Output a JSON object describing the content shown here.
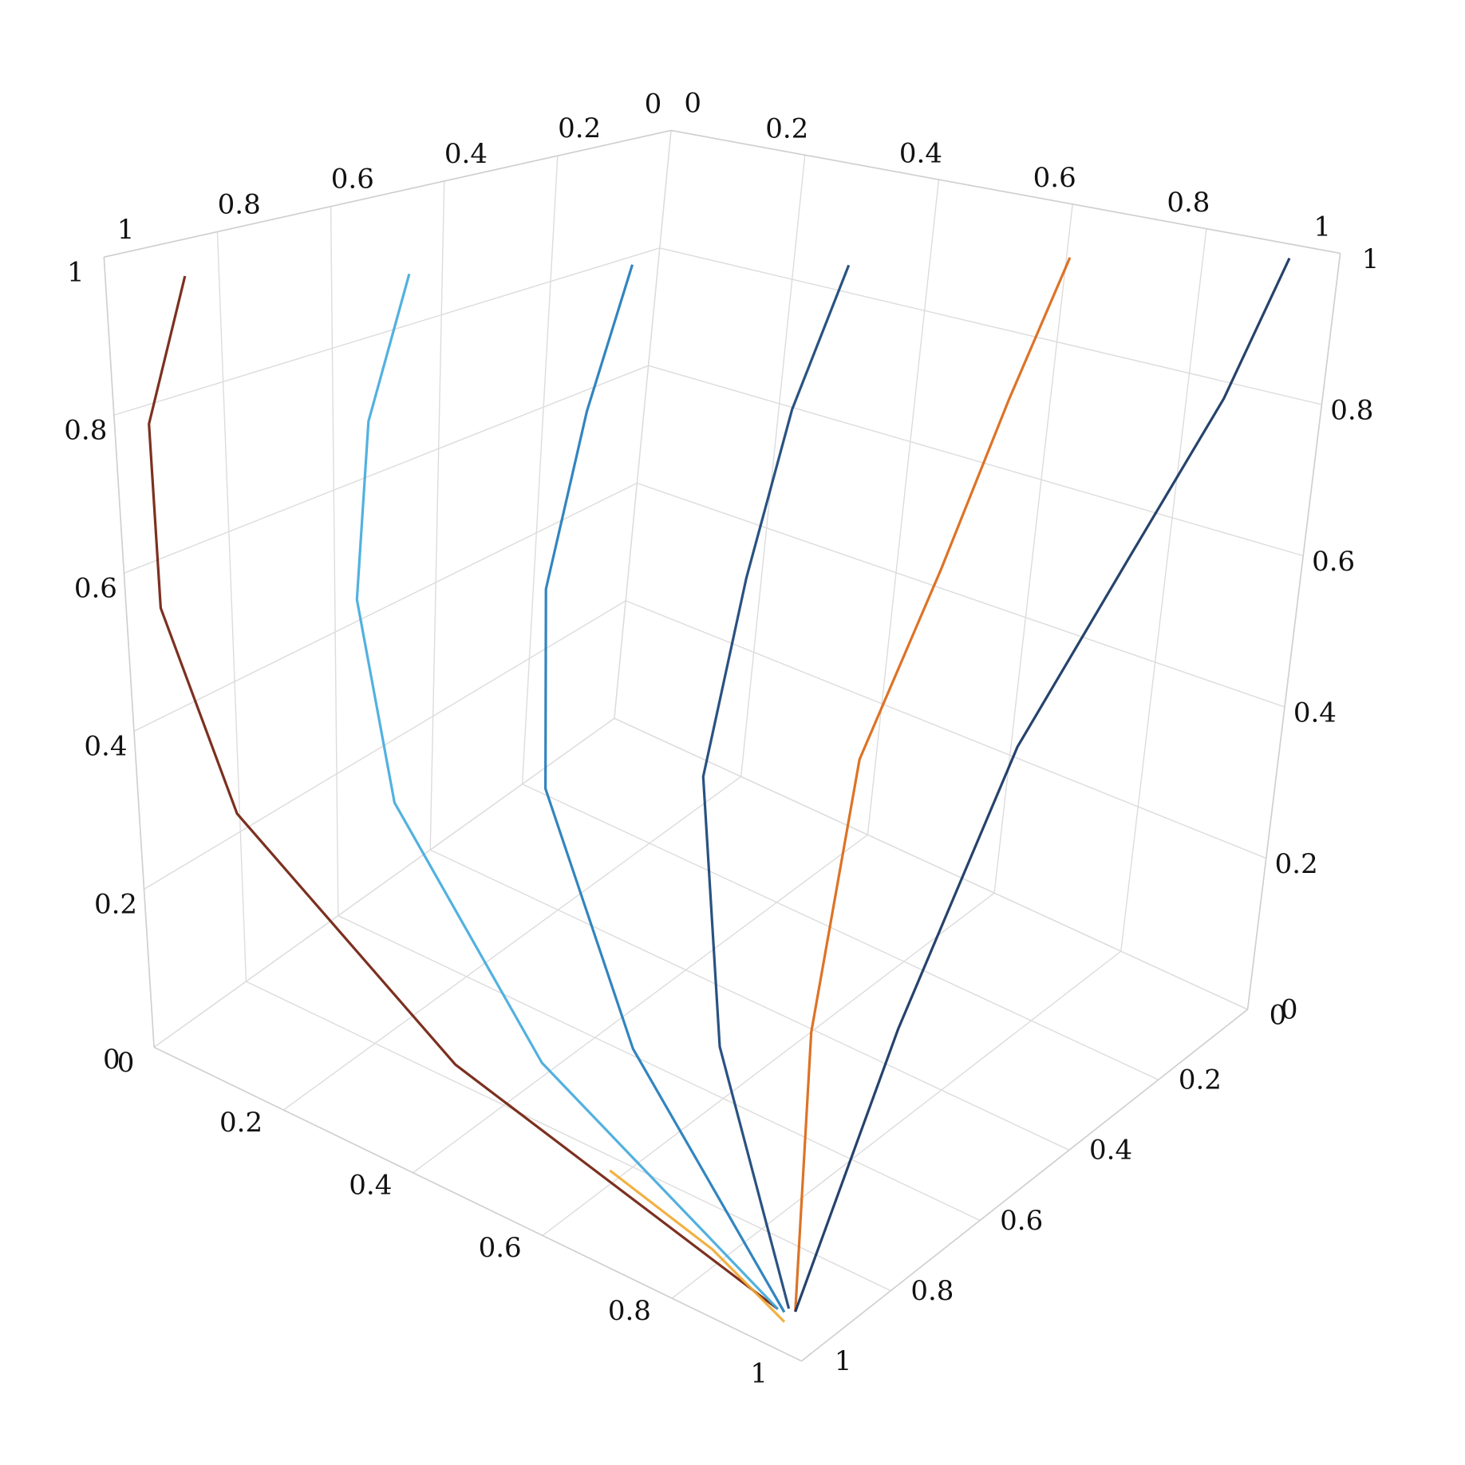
{
  "chart_data": {
    "type": "line3d",
    "xlim": [
      0,
      1
    ],
    "ylim": [
      0,
      1
    ],
    "zlim": [
      0,
      1
    ],
    "xticks": [
      0,
      0.2,
      0.4,
      0.6,
      0.8,
      1
    ],
    "yticks": [
      0,
      0.2,
      0.4,
      0.6,
      0.8,
      1
    ],
    "zticks": [
      0,
      0.2,
      0.4,
      0.6,
      0.8,
      1
    ],
    "grid": true,
    "series": [
      {
        "color": "#6e1a08",
        "x": [
          0.05,
          0.01,
          0.02,
          0.12,
          0.45,
          0.95
        ],
        "y": [
          0.92,
          0.95,
          0.96,
          0.96,
          0.97,
          0.98
        ],
        "z": [
          0.97,
          0.78,
          0.55,
          0.32,
          0.13,
          0.03
        ]
      },
      {
        "color": "#3fa9dc",
        "x": [
          0.23,
          0.19,
          0.19,
          0.27,
          0.54,
          0.95
        ],
        "y": [
          0.74,
          0.77,
          0.8,
          0.84,
          0.91,
          0.98
        ],
        "z": [
          0.97,
          0.78,
          0.56,
          0.34,
          0.14,
          0.03
        ]
      },
      {
        "color": "#1c78b8",
        "x": [
          0.41,
          0.37,
          0.35,
          0.41,
          0.63,
          0.96
        ],
        "y": [
          0.56,
          0.59,
          0.64,
          0.72,
          0.84,
          0.98
        ],
        "z": [
          0.98,
          0.79,
          0.57,
          0.36,
          0.16,
          0.03
        ]
      },
      {
        "color": "#123f73",
        "x": [
          0.59,
          0.54,
          0.52,
          0.56,
          0.72,
          0.96
        ],
        "y": [
          0.39,
          0.42,
          0.47,
          0.6,
          0.78,
          0.97
        ],
        "z": [
          0.98,
          0.79,
          0.58,
          0.38,
          0.17,
          0.03
        ]
      },
      {
        "color": "#d9640f",
        "x": [
          0.77,
          0.72,
          0.69,
          0.7,
          0.81,
          0.97
        ],
        "y": [
          0.21,
          0.24,
          0.31,
          0.47,
          0.71,
          0.97
        ],
        "z": [
          0.99,
          0.8,
          0.59,
          0.4,
          0.19,
          0.03
        ]
      },
      {
        "color": "#0d2f5c",
        "x": [
          0.95,
          0.9,
          0.85,
          0.85,
          0.9,
          0.97
        ],
        "y": [
          0.03,
          0.06,
          0.15,
          0.35,
          0.65,
          0.97
        ],
        "z": [
          0.99,
          0.8,
          0.6,
          0.42,
          0.2,
          0.03
        ]
      },
      {
        "color": "#f0a830",
        "x": [
          0.7,
          0.85,
          0.96
        ],
        "y": [
          0.99,
          0.98,
          0.98
        ],
        "z": [
          0.1,
          0.06,
          0.02
        ]
      }
    ]
  }
}
